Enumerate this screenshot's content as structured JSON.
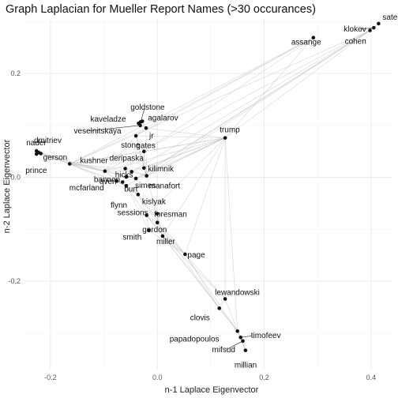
{
  "chart_data": {
    "type": "scatter",
    "title": "Graph Laplacian for Mueller Report Names (>30 occurances)",
    "xlabel": "n-1 Laplace Eigenvector",
    "ylabel": "n-2 Laplace Eigenvector",
    "xlim": [
      -0.25,
      0.44
    ],
    "ylim": [
      -0.37,
      0.305
    ],
    "x_ticks": [
      -0.2,
      0.0,
      0.2,
      0.4
    ],
    "x_tick_labels": [
      "-0.2",
      "0.0",
      "0.2",
      "0.4"
    ],
    "y_ticks": [
      -0.2,
      0.0,
      0.2
    ],
    "y_tick_labels": [
      "-0.2",
      "0.0",
      "0.2"
    ],
    "grid": true,
    "point_color": "#111111",
    "edge_color": "#bdbdbd",
    "points": [
      {
        "name": "sater",
        "x": 0.414,
        "y": 0.296
      },
      {
        "name": "klokov",
        "x": 0.405,
        "y": 0.288
      },
      {
        "name": "cohen",
        "x": 0.398,
        "y": 0.283
      },
      {
        "name": "assange",
        "x": 0.292,
        "y": 0.269
      },
      {
        "name": "trump",
        "x": 0.127,
        "y": 0.076
      },
      {
        "name": "goldstone",
        "x": -0.031,
        "y": 0.107
      },
      {
        "name": "kaveladze",
        "x": -0.035,
        "y": 0.104
      },
      {
        "name": "agalarov",
        "x": -0.028,
        "y": 0.108
      },
      {
        "name": "veselnitskaya",
        "x": -0.032,
        "y": 0.1
      },
      {
        "name": "jr",
        "x": -0.021,
        "y": 0.095
      },
      {
        "name": "stone",
        "x": -0.04,
        "y": 0.08
      },
      {
        "name": "gates",
        "x": -0.025,
        "y": 0.05
      },
      {
        "name": "nader",
        "x": -0.226,
        "y": 0.051
      },
      {
        "name": "dmitriev",
        "x": -0.222,
        "y": 0.048
      },
      {
        "name": "gerson",
        "x": -0.218,
        "y": 0.046
      },
      {
        "name": "prince",
        "x": -0.226,
        "y": 0.045
      },
      {
        "name": "kushner",
        "x": -0.164,
        "y": 0.026
      },
      {
        "name": "deripaska",
        "x": -0.06,
        "y": 0.017
      },
      {
        "name": "kilimnik",
        "x": -0.025,
        "y": 0.018
      },
      {
        "name": "bannon",
        "x": -0.098,
        "y": 0.012
      },
      {
        "name": "hicks",
        "x": -0.048,
        "y": 0.011
      },
      {
        "name": "manafort",
        "x": -0.02,
        "y": 0.003
      },
      {
        "name": "aven",
        "x": -0.058,
        "y": 0.001
      },
      {
        "name": "simes",
        "x": -0.04,
        "y": -0.002
      },
      {
        "name": "mcfarland",
        "x": -0.076,
        "y": -0.007
      },
      {
        "name": "burt",
        "x": -0.065,
        "y": -0.009
      },
      {
        "name": "flynn",
        "x": -0.058,
        "y": -0.016
      },
      {
        "name": "kislyak",
        "x": -0.036,
        "y": -0.033
      },
      {
        "name": "sessions",
        "x": -0.02,
        "y": -0.073
      },
      {
        "name": "foresman",
        "x": 0.0,
        "y": -0.07
      },
      {
        "name": "gordon",
        "x": 0.0,
        "y": -0.087
      },
      {
        "name": "smith",
        "x": -0.016,
        "y": -0.102
      },
      {
        "name": "miller",
        "x": 0.01,
        "y": -0.113
      },
      {
        "name": "page",
        "x": 0.052,
        "y": -0.148
      },
      {
        "name": "lewandowski",
        "x": 0.127,
        "y": -0.234
      },
      {
        "name": "clovis",
        "x": 0.116,
        "y": -0.252
      },
      {
        "name": "papadopoulos",
        "x": 0.15,
        "y": -0.296
      },
      {
        "name": "timofeev",
        "x": 0.156,
        "y": -0.308
      },
      {
        "name": "mifsud",
        "x": 0.16,
        "y": -0.315
      },
      {
        "name": "millian",
        "x": 0.165,
        "y": -0.333
      }
    ],
    "edges": [
      [
        "sater",
        "cohen"
      ],
      [
        "klokov",
        "cohen"
      ],
      [
        "sater",
        "klokov"
      ],
      [
        "cohen",
        "trump"
      ],
      [
        "cohen",
        "kushner"
      ],
      [
        "cohen",
        "bannon"
      ],
      [
        "cohen",
        "hicks"
      ],
      [
        "cohen",
        "simes"
      ],
      [
        "cohen",
        "flynn"
      ],
      [
        "cohen",
        "manafort"
      ],
      [
        "assange",
        "stone"
      ],
      [
        "assange",
        "trump"
      ],
      [
        "assange",
        "gates"
      ],
      [
        "assange",
        "jr"
      ],
      [
        "assange",
        "kushner"
      ],
      [
        "trump",
        "jr"
      ],
      [
        "trump",
        "stone"
      ],
      [
        "trump",
        "kushner"
      ],
      [
        "trump",
        "bannon"
      ],
      [
        "trump",
        "manafort"
      ],
      [
        "trump",
        "flynn"
      ],
      [
        "trump",
        "sessions"
      ],
      [
        "trump",
        "miller"
      ],
      [
        "trump",
        "page"
      ],
      [
        "trump",
        "lewandowski"
      ],
      [
        "trump",
        "papadopoulos"
      ],
      [
        "trump",
        "hicks"
      ],
      [
        "trump",
        "simes"
      ],
      [
        "trump",
        "kilimnik"
      ],
      [
        "trump",
        "gates"
      ],
      [
        "goldstone",
        "kaveladze"
      ],
      [
        "goldstone",
        "agalarov"
      ],
      [
        "goldstone",
        "veselnitskaya"
      ],
      [
        "goldstone",
        "jr"
      ],
      [
        "kaveladze",
        "agalarov"
      ],
      [
        "kaveladze",
        "veselnitskaya"
      ],
      [
        "veselnitskaya",
        "agalarov"
      ],
      [
        "veselnitskaya",
        "jr"
      ],
      [
        "agalarov",
        "jr"
      ],
      [
        "jr",
        "kushner"
      ],
      [
        "jr",
        "manafort"
      ],
      [
        "jr",
        "stone"
      ],
      [
        "stone",
        "gates"
      ],
      [
        "stone",
        "bannon"
      ],
      [
        "stone",
        "manafort"
      ],
      [
        "stone",
        "miller"
      ],
      [
        "gates",
        "manafort"
      ],
      [
        "gates",
        "kilimnik"
      ],
      [
        "gates",
        "deripaska"
      ],
      [
        "manafort",
        "kilimnik"
      ],
      [
        "manafort",
        "deripaska"
      ],
      [
        "kilimnik",
        "deripaska"
      ],
      [
        "nader",
        "dmitriev"
      ],
      [
        "nader",
        "gerson"
      ],
      [
        "nader",
        "prince"
      ],
      [
        "dmitriev",
        "gerson"
      ],
      [
        "dmitriev",
        "prince"
      ],
      [
        "gerson",
        "prince"
      ],
      [
        "nader",
        "kushner"
      ],
      [
        "dmitriev",
        "kushner"
      ],
      [
        "gerson",
        "kushner"
      ],
      [
        "prince",
        "bannon"
      ],
      [
        "dmitriev",
        "aven"
      ],
      [
        "gerson",
        "bannon"
      ],
      [
        "kushner",
        "bannon"
      ],
      [
        "kushner",
        "flynn"
      ],
      [
        "kushner",
        "kislyak"
      ],
      [
        "kushner",
        "hicks"
      ],
      [
        "kushner",
        "simes"
      ],
      [
        "kushner",
        "mcfarland"
      ],
      [
        "bannon",
        "flynn"
      ],
      [
        "bannon",
        "mcfarland"
      ],
      [
        "bannon",
        "hicks"
      ],
      [
        "flynn",
        "kislyak"
      ],
      [
        "flynn",
        "mcfarland"
      ],
      [
        "flynn",
        "burt"
      ],
      [
        "mcfarland",
        "kislyak"
      ],
      [
        "aven",
        "burt"
      ],
      [
        "aven",
        "simes"
      ],
      [
        "burt",
        "simes"
      ],
      [
        "kislyak",
        "sessions"
      ],
      [
        "kislyak",
        "gordon"
      ],
      [
        "kislyak",
        "page"
      ],
      [
        "sessions",
        "foresman"
      ],
      [
        "sessions",
        "gordon"
      ],
      [
        "sessions",
        "page"
      ],
      [
        "sessions",
        "miller"
      ],
      [
        "sessions",
        "papadopoulos"
      ],
      [
        "foresman",
        "gordon"
      ],
      [
        "gordon",
        "page"
      ],
      [
        "gordon",
        "miller"
      ],
      [
        "gordon",
        "clovis"
      ],
      [
        "smith",
        "flynn"
      ],
      [
        "smith",
        "sessions"
      ],
      [
        "smith",
        "page"
      ],
      [
        "miller",
        "page"
      ],
      [
        "miller",
        "papadopoulos"
      ],
      [
        "miller",
        "lewandowski"
      ],
      [
        "page",
        "clovis"
      ],
      [
        "page",
        "lewandowski"
      ],
      [
        "page",
        "papadopoulos"
      ],
      [
        "clovis",
        "papadopoulos"
      ],
      [
        "clovis",
        "lewandowski"
      ],
      [
        "lewandowski",
        "papadopoulos"
      ],
      [
        "papadopoulos",
        "mifsud"
      ],
      [
        "papadopoulos",
        "timofeev"
      ],
      [
        "papadopoulos",
        "millian"
      ],
      [
        "mifsud",
        "timofeev"
      ],
      [
        "mifsud",
        "millian"
      ],
      [
        "timofeev",
        "millian"
      ],
      [
        "deripaska",
        "kushner"
      ],
      [
        "hicks",
        "manafort"
      ],
      [
        "flynn",
        "sessions"
      ],
      [
        "stone",
        "kilimnik"
      ],
      [
        "gates",
        "kushner"
      ]
    ]
  }
}
